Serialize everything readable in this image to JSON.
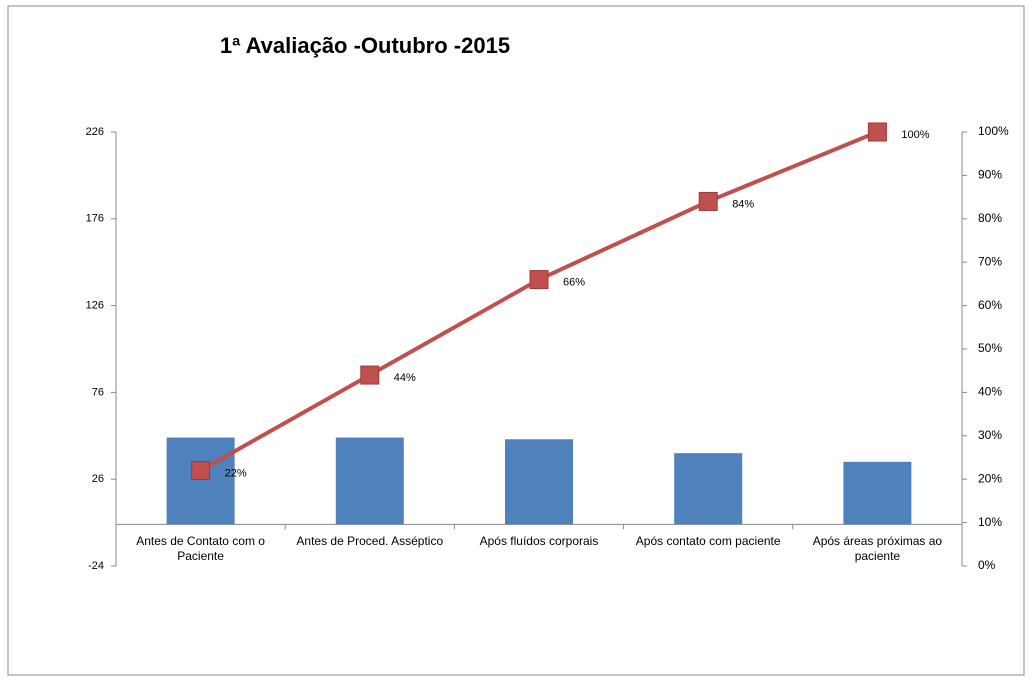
{
  "chart_data": {
    "type": "pareto",
    "title": "1ª Avaliação -Outubro -2015",
    "categories": [
      "Antes de Contato com o Paciente",
      "Antes de Proced. Asséptico",
      "Após fluídos corporais",
      "Após contato com paciente",
      "Após áreas próximas ao paciente"
    ],
    "series": [
      {
        "type": "bar",
        "color": "#4f81bd",
        "values": [
          50,
          50,
          49,
          41,
          36
        ]
      },
      {
        "type": "line",
        "axis": "y2",
        "color": "#c0504d",
        "values": [
          22,
          44,
          66,
          84,
          100
        ],
        "value_labels": [
          "22%",
          "44%",
          "66%",
          "84%",
          "100%"
        ]
      }
    ],
    "ylim": [
      -24,
      226
    ],
    "yticks": [
      -24,
      26,
      76,
      126,
      176,
      226
    ],
    "y2lim": [
      0,
      100
    ],
    "y2ticks": [
      {
        "value": 0,
        "label": "0%"
      },
      {
        "value": 10,
        "label": "10%"
      },
      {
        "value": 20,
        "label": "20%"
      },
      {
        "value": 30,
        "label": "30%"
      },
      {
        "value": 40,
        "label": "40%"
      },
      {
        "value": 50,
        "label": "50%"
      },
      {
        "value": 60,
        "label": "60%"
      },
      {
        "value": 70,
        "label": "70%"
      },
      {
        "value": 80,
        "label": "80%"
      },
      {
        "value": 90,
        "label": "90%"
      },
      {
        "value": 100,
        "label": "100%"
      }
    ]
  }
}
